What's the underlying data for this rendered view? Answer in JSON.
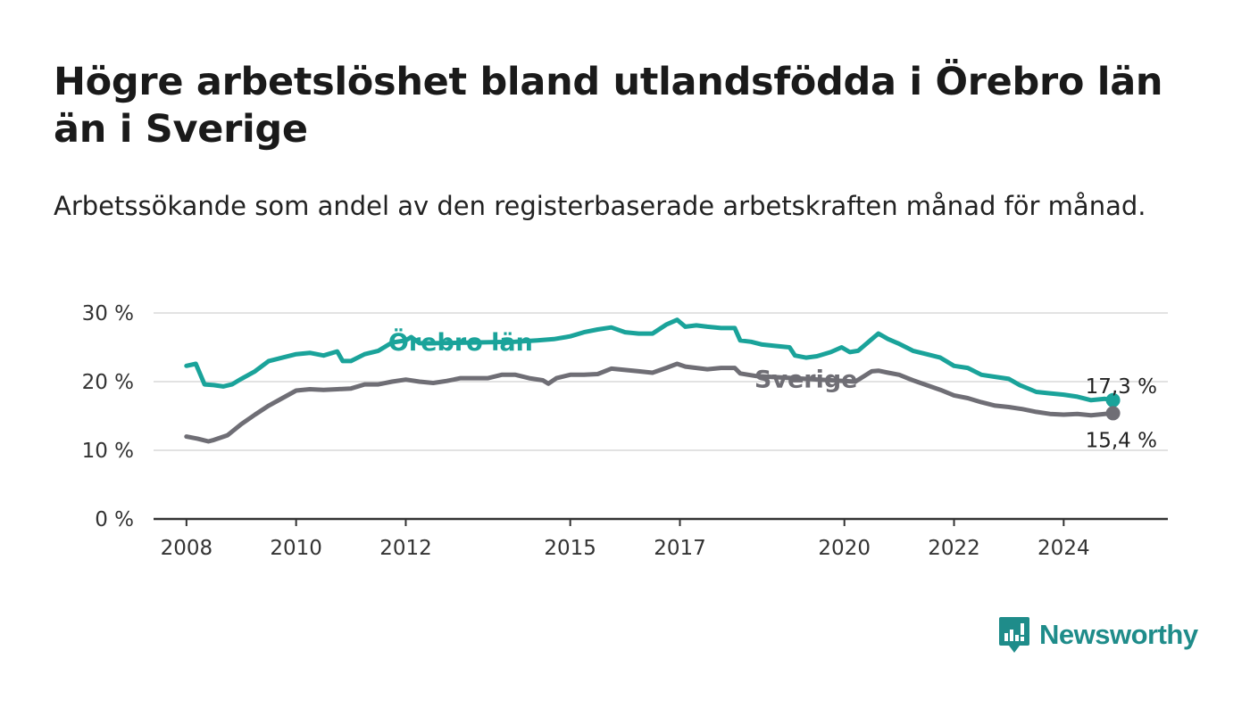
{
  "header": {
    "title": "Högre arbetslöshet bland utlandsfödda i Örebro län än i Sverige",
    "subtitle": "Arbetssökande som andel av den registerbaserade arbetskraften månad för månad."
  },
  "brand": {
    "name": "Newsworthy",
    "color": "#1f8c8a"
  },
  "chart_data": {
    "type": "line",
    "title": "Högre arbetslöshet bland utlandsfödda i Örebro län än i Sverige",
    "subtitle": "Arbetssökande som andel av den registerbaserade arbetskraften månad för månad.",
    "xlabel": "",
    "ylabel": "",
    "xlim": [
      2007.4,
      2025.9
    ],
    "ylim": [
      0,
      30
    ],
    "x_ticks": [
      2008,
      2010,
      2012,
      2015,
      2017,
      2020,
      2022,
      2024
    ],
    "x_tick_labels": [
      "2008",
      "2010",
      "2012",
      "2015",
      "2017",
      "2020",
      "2022",
      "2024"
    ],
    "y_ticks": [
      0,
      10,
      20,
      30
    ],
    "y_tick_labels": [
      "0 %",
      "10 %",
      "20 %",
      "30 %"
    ],
    "grid": true,
    "legend": "inline labels",
    "series": [
      {
        "name": "Örebro län",
        "color": "#1aa39a",
        "end_label": "17,3 %",
        "points": [
          [
            2008.0,
            22.3
          ],
          [
            2008.17,
            22.6
          ],
          [
            2008.33,
            19.6
          ],
          [
            2008.5,
            19.5
          ],
          [
            2008.67,
            19.3
          ],
          [
            2008.83,
            19.6
          ],
          [
            2009.0,
            20.4
          ],
          [
            2009.25,
            21.5
          ],
          [
            2009.5,
            23.0
          ],
          [
            2009.75,
            23.5
          ],
          [
            2010.0,
            24.0
          ],
          [
            2010.25,
            24.2
          ],
          [
            2010.5,
            23.8
          ],
          [
            2010.75,
            24.4
          ],
          [
            2010.85,
            23.0
          ],
          [
            2011.0,
            23.0
          ],
          [
            2011.25,
            24.0
          ],
          [
            2011.5,
            24.5
          ],
          [
            2011.75,
            25.7
          ],
          [
            2012.0,
            26.0
          ],
          [
            2012.1,
            26.5
          ],
          [
            2012.25,
            25.6
          ],
          [
            2012.5,
            25.6
          ],
          [
            2014.0,
            25.8
          ],
          [
            2014.4,
            26.0
          ],
          [
            2014.7,
            26.2
          ],
          [
            2015.0,
            26.6
          ],
          [
            2015.25,
            27.2
          ],
          [
            2015.5,
            27.6
          ],
          [
            2015.75,
            27.9
          ],
          [
            2016.0,
            27.2
          ],
          [
            2016.25,
            27.0
          ],
          [
            2016.5,
            27.0
          ],
          [
            2016.75,
            28.3
          ],
          [
            2016.95,
            29.0
          ],
          [
            2017.1,
            28.0
          ],
          [
            2017.3,
            28.2
          ],
          [
            2017.5,
            28.0
          ],
          [
            2017.75,
            27.8
          ],
          [
            2018.0,
            27.8
          ],
          [
            2018.1,
            26.0
          ],
          [
            2018.3,
            25.8
          ],
          [
            2018.5,
            25.4
          ],
          [
            2018.75,
            25.2
          ],
          [
            2019.0,
            25.0
          ],
          [
            2019.1,
            23.8
          ],
          [
            2019.3,
            23.5
          ],
          [
            2019.5,
            23.7
          ],
          [
            2019.75,
            24.3
          ],
          [
            2019.95,
            25.0
          ],
          [
            2020.1,
            24.3
          ],
          [
            2020.25,
            24.5
          ],
          [
            2020.5,
            26.2
          ],
          [
            2020.62,
            27.0
          ],
          [
            2020.8,
            26.2
          ],
          [
            2021.0,
            25.5
          ],
          [
            2021.25,
            24.5
          ],
          [
            2021.5,
            24.0
          ],
          [
            2021.75,
            23.5
          ],
          [
            2022.0,
            22.3
          ],
          [
            2022.25,
            22.0
          ],
          [
            2022.5,
            21.0
          ],
          [
            2022.75,
            20.7
          ],
          [
            2023.0,
            20.4
          ],
          [
            2023.2,
            19.5
          ],
          [
            2023.5,
            18.5
          ],
          [
            2023.75,
            18.3
          ],
          [
            2024.0,
            18.1
          ],
          [
            2024.25,
            17.8
          ],
          [
            2024.5,
            17.3
          ],
          [
            2024.75,
            17.5
          ],
          [
            2024.9,
            17.3
          ]
        ]
      },
      {
        "name": "Sverige",
        "color": "#6f6e75",
        "end_label": "15,4 %",
        "points": [
          [
            2008.0,
            12.0
          ],
          [
            2008.2,
            11.7
          ],
          [
            2008.4,
            11.3
          ],
          [
            2008.5,
            11.5
          ],
          [
            2008.75,
            12.2
          ],
          [
            2009.0,
            13.8
          ],
          [
            2009.25,
            15.2
          ],
          [
            2009.5,
            16.5
          ],
          [
            2009.75,
            17.6
          ],
          [
            2010.0,
            18.7
          ],
          [
            2010.25,
            18.9
          ],
          [
            2010.5,
            18.8
          ],
          [
            2010.75,
            18.9
          ],
          [
            2011.0,
            19.0
          ],
          [
            2011.25,
            19.6
          ],
          [
            2011.5,
            19.6
          ],
          [
            2011.75,
            20.0
          ],
          [
            2012.0,
            20.3
          ],
          [
            2012.25,
            20.0
          ],
          [
            2012.5,
            19.8
          ],
          [
            2012.75,
            20.1
          ],
          [
            2013.0,
            20.5
          ],
          [
            2013.25,
            20.5
          ],
          [
            2013.5,
            20.5
          ],
          [
            2013.75,
            21.0
          ],
          [
            2014.0,
            21.0
          ],
          [
            2014.25,
            20.5
          ],
          [
            2014.5,
            20.2
          ],
          [
            2014.6,
            19.7
          ],
          [
            2014.75,
            20.5
          ],
          [
            2015.0,
            21.0
          ],
          [
            2015.25,
            21.0
          ],
          [
            2015.5,
            21.1
          ],
          [
            2015.75,
            21.9
          ],
          [
            2016.0,
            21.7
          ],
          [
            2016.25,
            21.5
          ],
          [
            2016.5,
            21.3
          ],
          [
            2016.75,
            22.0
          ],
          [
            2016.95,
            22.6
          ],
          [
            2017.1,
            22.2
          ],
          [
            2017.3,
            22.0
          ],
          [
            2017.5,
            21.8
          ],
          [
            2017.75,
            22.0
          ],
          [
            2018.0,
            22.0
          ],
          [
            2018.1,
            21.2
          ],
          [
            2018.25,
            21.0
          ],
          [
            2018.4,
            20.8
          ],
          [
            2020.2,
            20.0
          ],
          [
            2020.5,
            21.5
          ],
          [
            2020.62,
            21.6
          ],
          [
            2020.8,
            21.3
          ],
          [
            2021.0,
            21.0
          ],
          [
            2021.25,
            20.2
          ],
          [
            2021.5,
            19.5
          ],
          [
            2021.75,
            18.8
          ],
          [
            2022.0,
            18.0
          ],
          [
            2022.25,
            17.6
          ],
          [
            2022.5,
            17.0
          ],
          [
            2022.75,
            16.5
          ],
          [
            2023.0,
            16.3
          ],
          [
            2023.25,
            16.0
          ],
          [
            2023.5,
            15.6
          ],
          [
            2023.75,
            15.3
          ],
          [
            2024.0,
            15.2
          ],
          [
            2024.25,
            15.3
          ],
          [
            2024.5,
            15.1
          ],
          [
            2024.75,
            15.3
          ],
          [
            2024.9,
            15.4
          ]
        ]
      }
    ]
  }
}
